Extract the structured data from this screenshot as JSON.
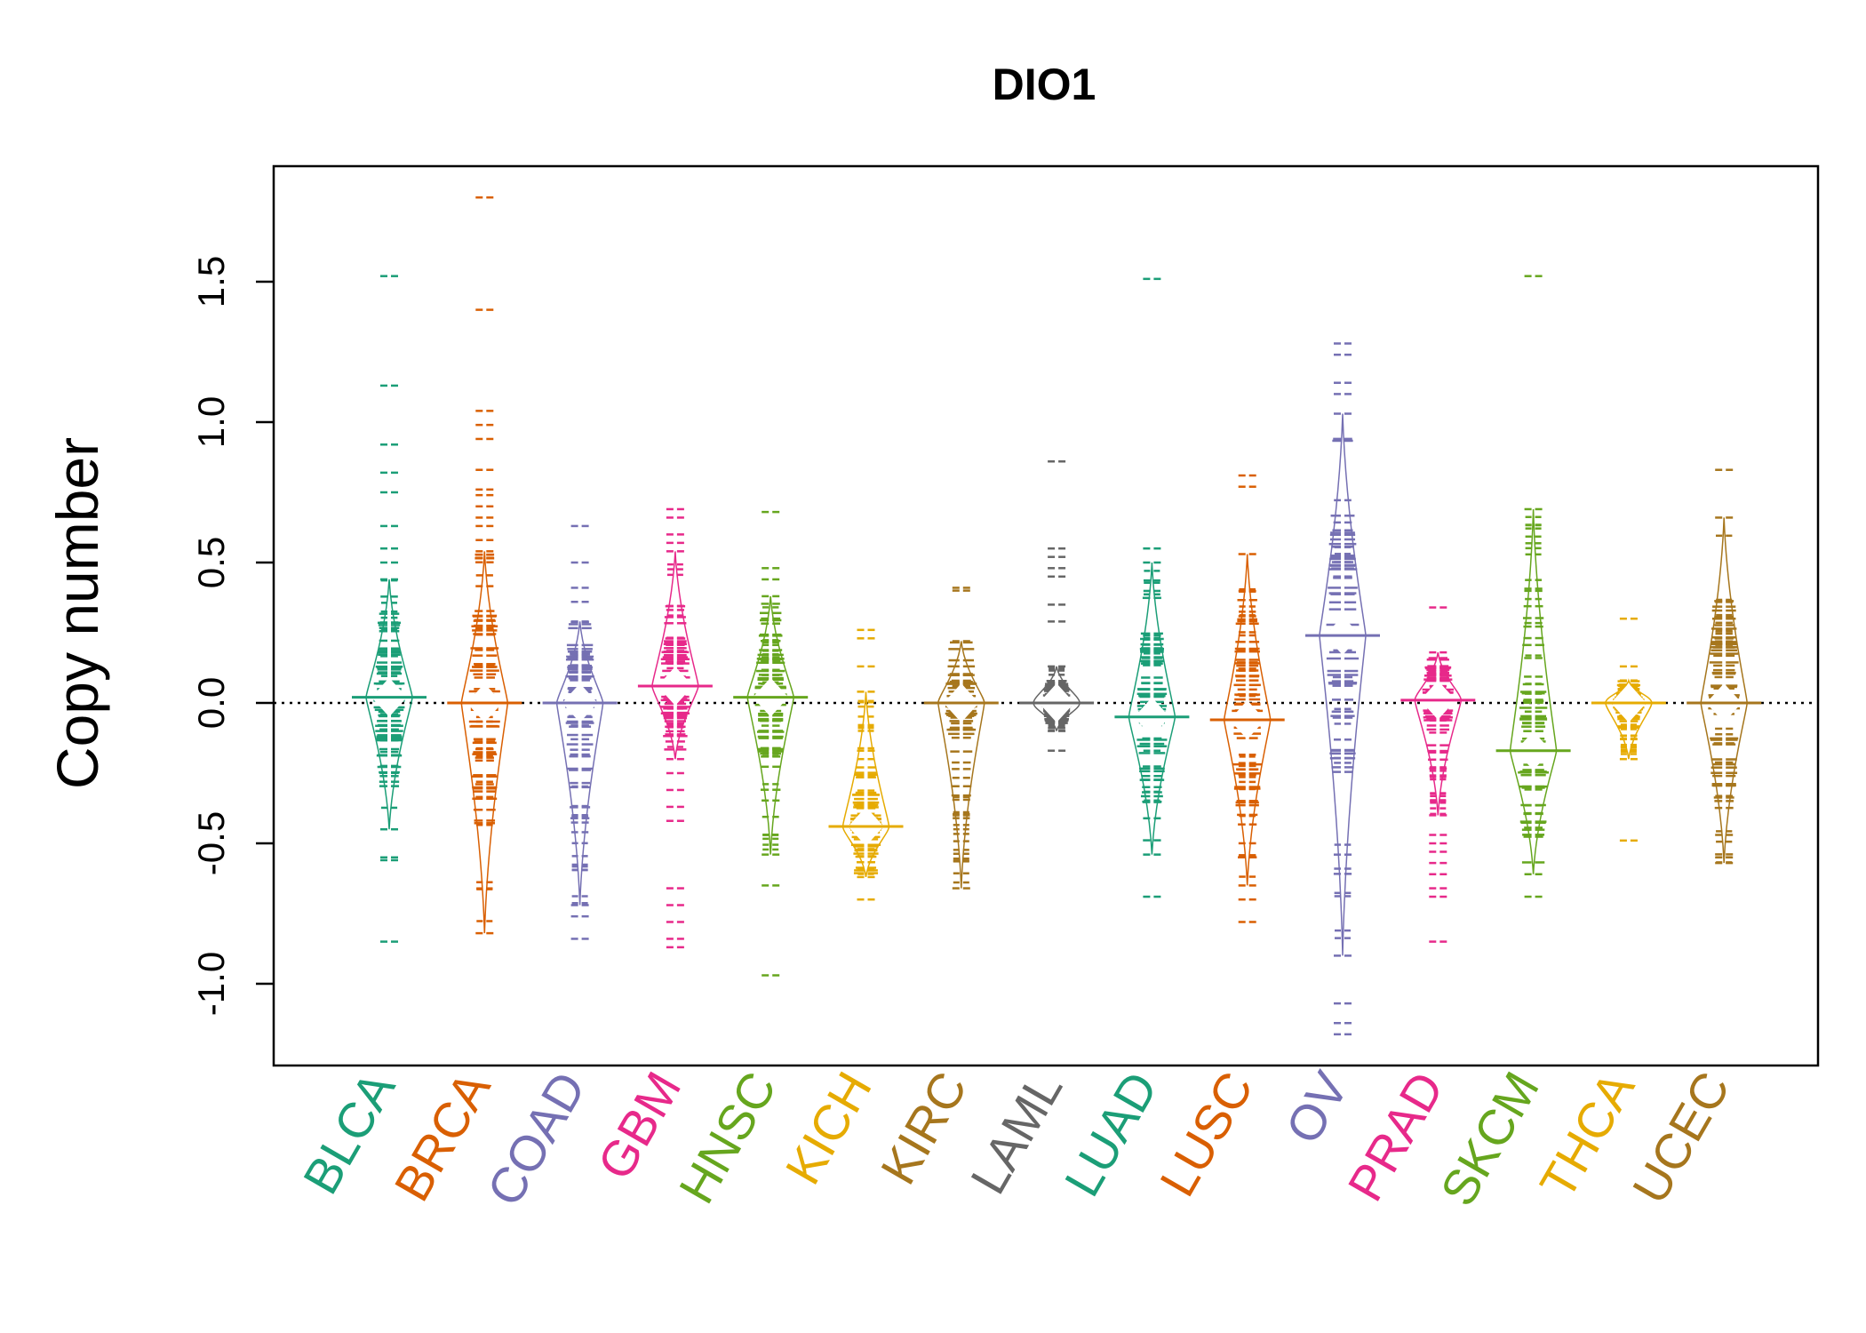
{
  "chart_data": {
    "type": "beanplot",
    "title": "DIO1",
    "ylabel": "Copy number",
    "ylim": [
      -1.28,
      1.92
    ],
    "yticks": [
      -1.0,
      -0.5,
      0.0,
      0.5,
      1.0,
      1.5
    ],
    "ytick_labels": [
      "-1.0",
      "-0.5",
      "0.0",
      "0.5",
      "1.0",
      "1.5"
    ],
    "reference_line": 0.0,
    "grid": false,
    "legend": "none",
    "categories": [
      "BLCA",
      "BRCA",
      "COAD",
      "GBM",
      "HNSC",
      "KICH",
      "KIRC",
      "LAML",
      "LUAD",
      "LUSC",
      "OV",
      "PRAD",
      "SKCM",
      "THCA",
      "UCEC"
    ],
    "colors": [
      "#1B9E77",
      "#D95F02",
      "#7570B3",
      "#E7298A",
      "#66A61E",
      "#E6AB02",
      "#A6761D",
      "#666666",
      "#1B9E77",
      "#D95F02",
      "#7570B3",
      "#E7298A",
      "#66A61E",
      "#E6AB02",
      "#A6761D"
    ],
    "groups": [
      {
        "name": "BLCA",
        "mean": 0.02,
        "bulk_min": -0.45,
        "bulk_max": 0.44,
        "outliers": [
          1.52,
          1.13,
          0.92,
          0.82,
          0.75,
          0.63,
          0.55,
          0.5,
          -0.55,
          -0.56,
          -0.85
        ]
      },
      {
        "name": "BRCA",
        "mean": 0.0,
        "bulk_min": -0.82,
        "bulk_max": 0.54,
        "outliers": [
          1.8,
          1.4,
          1.04,
          0.99,
          0.94,
          0.83,
          0.76,
          0.74,
          0.7,
          0.66,
          0.63,
          0.58
        ]
      },
      {
        "name": "COAD",
        "mean": 0.0,
        "bulk_min": -0.72,
        "bulk_max": 0.29,
        "outliers": [
          0.63,
          0.5,
          0.41,
          0.36,
          -0.76,
          -0.84
        ]
      },
      {
        "name": "GBM",
        "mean": 0.06,
        "bulk_min": -0.2,
        "bulk_max": 0.54,
        "outliers": [
          0.69,
          0.66,
          0.6,
          0.57,
          -0.25,
          -0.31,
          -0.37,
          -0.42,
          -0.66,
          -0.72,
          -0.78,
          -0.84,
          -0.87
        ]
      },
      {
        "name": "HNSC",
        "mean": 0.02,
        "bulk_min": -0.54,
        "bulk_max": 0.38,
        "outliers": [
          0.68,
          0.48,
          0.44,
          -0.65,
          -0.97
        ]
      },
      {
        "name": "KICH",
        "mean": -0.44,
        "bulk_min": -0.62,
        "bulk_max": 0.04,
        "outliers": [
          0.26,
          0.23,
          0.13,
          -0.17,
          -0.2,
          -0.7
        ]
      },
      {
        "name": "KIRC",
        "mean": 0.0,
        "bulk_min": -0.66,
        "bulk_max": 0.22,
        "outliers": [
          0.41,
          0.4
        ]
      },
      {
        "name": "LAML",
        "mean": 0.0,
        "bulk_min": -0.1,
        "bulk_max": 0.13,
        "outliers": [
          0.86,
          0.55,
          0.52,
          0.48,
          0.45,
          0.35,
          0.29,
          -0.17
        ]
      },
      {
        "name": "LUAD",
        "mean": -0.05,
        "bulk_min": -0.54,
        "bulk_max": 0.5,
        "outliers": [
          1.51,
          0.55,
          -0.69
        ]
      },
      {
        "name": "LUSC",
        "mean": -0.06,
        "bulk_min": -0.65,
        "bulk_max": 0.53,
        "outliers": [
          0.81,
          0.77,
          -0.7,
          -0.78
        ]
      },
      {
        "name": "OV",
        "mean": 0.24,
        "bulk_min": -0.9,
        "bulk_max": 1.03,
        "outliers": [
          1.28,
          1.24,
          1.14,
          1.1,
          -1.07,
          -1.14,
          -1.18
        ]
      },
      {
        "name": "PRAD",
        "mean": 0.01,
        "bulk_min": -0.4,
        "bulk_max": 0.18,
        "outliers": [
          0.34,
          -0.47,
          -0.5,
          -0.53,
          -0.57,
          -0.61,
          -0.66,
          -0.69,
          -0.85
        ]
      },
      {
        "name": "SKCM",
        "mean": -0.17,
        "bulk_min": -0.61,
        "bulk_max": 0.69,
        "outliers": [
          1.52,
          -0.69
        ]
      },
      {
        "name": "THCA",
        "mean": 0.0,
        "bulk_min": -0.2,
        "bulk_max": 0.08,
        "outliers": [
          0.3,
          0.13,
          -0.49
        ]
      },
      {
        "name": "UCEC",
        "mean": 0.0,
        "bulk_min": -0.57,
        "bulk_max": 0.66,
        "outliers": [
          0.83,
          -0.47,
          -0.55
        ]
      }
    ]
  }
}
